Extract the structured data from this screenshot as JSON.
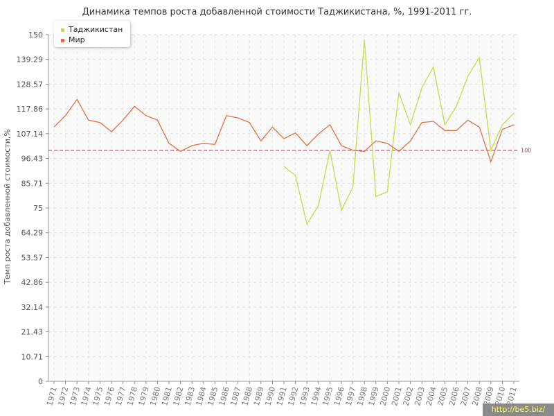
{
  "chart_data": {
    "type": "line",
    "title": "Динамика темпов роста добавленной стоимости Таджикистана, %, 1991-2011 гг.",
    "ylabel": "Темп роста добавленной стоимости,%",
    "xlabel": "",
    "ylim": [
      0,
      150
    ],
    "y_ticks": [
      "0",
      "10.71",
      "21.43",
      "32.14",
      "42.86",
      "53.57",
      "64.29",
      "75",
      "85.71",
      "96.43",
      "107.14",
      "117.86",
      "128.57",
      "139.29",
      "150"
    ],
    "categories": [
      "1971",
      "1972",
      "1973",
      "1974",
      "1975",
      "1976",
      "1977",
      "1978",
      "1979",
      "1980",
      "1981",
      "1982",
      "1983",
      "1984",
      "1985",
      "1986",
      "1987",
      "1988",
      "1989",
      "1990",
      "1991",
      "1992",
      "1993",
      "1994",
      "1995",
      "1996",
      "1997",
      "1998",
      "1999",
      "2000",
      "2001",
      "2002",
      "2003",
      "2004",
      "2005",
      "2006",
      "2007",
      "2008",
      "2009",
      "2010",
      "2011"
    ],
    "reference_line": {
      "value": 100,
      "label": "100",
      "color": "#a05060"
    },
    "grid": true,
    "legend_position": "top-left",
    "series": [
      {
        "name": "Таджикистан",
        "color": "#c6dc4a",
        "values": [
          null,
          null,
          null,
          null,
          null,
          null,
          null,
          null,
          null,
          null,
          null,
          null,
          null,
          null,
          null,
          null,
          null,
          null,
          null,
          null,
          93,
          89,
          68,
          76,
          100,
          74,
          84,
          148,
          80,
          82,
          125,
          111,
          127,
          136,
          111,
          119,
          132,
          140,
          100,
          111,
          116
        ]
      },
      {
        "name": "Мир",
        "color": "#e07040",
        "values": [
          110,
          115,
          122,
          113,
          112,
          108,
          113,
          119,
          115,
          113,
          103,
          99.5,
          102,
          103,
          102.5,
          115,
          114,
          112,
          104,
          110,
          105,
          107.5,
          102,
          107,
          111,
          102,
          100,
          99.5,
          104,
          103,
          99.5,
          104,
          112,
          112.5,
          108.5,
          108.5,
          113,
          110,
          95,
          109,
          111
        ]
      }
    ]
  },
  "watermark": "http://be5.biz/"
}
